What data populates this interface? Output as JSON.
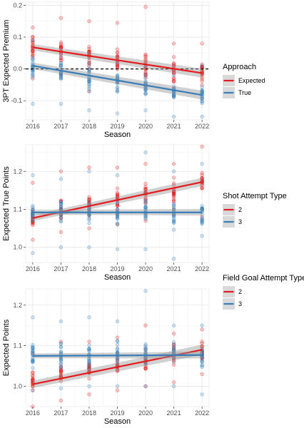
{
  "colors": {
    "red": "#e41a1c",
    "blue": "#377eb8"
  },
  "chart_data": [
    {
      "type": "scatter",
      "xlabel": "Season",
      "ylabel": "3PT Expected Premium",
      "x": [
        2016,
        2017,
        2018,
        2019,
        2020,
        2021,
        2022
      ],
      "xlim": [
        2015.75,
        2022.25
      ],
      "ylim": [
        -0.16,
        0.21
      ],
      "yticks": [
        -0.1,
        0.0,
        0.1,
        0.2
      ],
      "ytick_labels": [
        "-0.1",
        "0.0",
        "0.1",
        "0.2"
      ],
      "reference_line": {
        "y": 0,
        "style": "dashed"
      },
      "grid": true,
      "legend": {
        "title": "Approach",
        "position": "right"
      },
      "series": [
        {
          "name": "Expected",
          "color": "#e41a1c",
          "trend": [
            0.068,
            -0.013
          ],
          "band": 0.01,
          "center": [
            0.07,
            0.06,
            0.04,
            0.03,
            0.015,
            -0.002,
            -0.005
          ],
          "spread": [
            0.05,
            0.048,
            0.055,
            0.05,
            0.06,
            0.05,
            0.055
          ],
          "top": [
            0.13,
            0.16,
            0.15,
            0.145,
            0.195,
            0.08,
            0.08
          ],
          "bottom": [
            -0.03,
            -0.02,
            -0.07,
            -0.04,
            -0.05,
            -0.06,
            -0.05
          ]
        },
        {
          "name": "True",
          "color": "#377eb8",
          "trend": [
            0.01,
            -0.082
          ],
          "band": 0.01,
          "center": [
            0.0,
            -0.01,
            -0.03,
            -0.045,
            -0.055,
            -0.075,
            -0.085
          ],
          "spread": [
            0.05,
            0.048,
            0.05,
            0.045,
            0.05,
            0.04,
            0.04
          ],
          "top": [
            0.09,
            0.04,
            0.02,
            0.02,
            0.01,
            -0.02,
            0.01
          ],
          "bottom": [
            -0.11,
            -0.11,
            -0.13,
            -0.14,
            -0.13,
            -0.15,
            -0.15
          ]
        }
      ]
    },
    {
      "type": "scatter",
      "xlabel": "Season",
      "ylabel": "Expected True Points",
      "x": [
        2016,
        2017,
        2018,
        2019,
        2020,
        2021,
        2022
      ],
      "xlim": [
        2015.75,
        2022.25
      ],
      "ylim": [
        0.96,
        1.27
      ],
      "yticks": [
        1.0,
        1.1,
        1.2
      ],
      "ytick_labels": [
        "1.0",
        "1.1",
        "1.2"
      ],
      "grid": true,
      "legend": {
        "title": "Shot Attempt Type",
        "position": "right"
      },
      "series": [
        {
          "name": "2",
          "color": "#e41a1c",
          "trend": [
            1.077,
            1.172
          ],
          "band": 0.008,
          "center": [
            1.08,
            1.1,
            1.11,
            1.13,
            1.14,
            1.15,
            1.175
          ],
          "spread": [
            0.035,
            0.035,
            0.035,
            0.035,
            0.04,
            0.04,
            0.04
          ],
          "top": [
            1.17,
            1.2,
            1.21,
            1.21,
            1.22,
            1.22,
            1.265
          ],
          "bottom": [
            1.02,
            1.04,
            1.05,
            1.06,
            1.07,
            1.1,
            1.08
          ]
        },
        {
          "name": "3",
          "color": "#377eb8",
          "trend": [
            1.092,
            1.092
          ],
          "band": 0.006,
          "center": [
            1.09,
            1.09,
            1.09,
            1.09,
            1.095,
            1.085,
            1.085
          ],
          "spread": [
            0.045,
            0.045,
            0.045,
            0.045,
            0.05,
            0.045,
            0.04
          ],
          "top": [
            1.19,
            1.18,
            1.2,
            1.19,
            1.25,
            1.2,
            1.22
          ],
          "bottom": [
            0.985,
            1.0,
            1.0,
            0.995,
            0.995,
            0.97,
            1.03
          ]
        }
      ]
    },
    {
      "type": "scatter",
      "xlabel": "Season",
      "ylabel": "Expected Points",
      "x": [
        2016,
        2017,
        2018,
        2019,
        2020,
        2021,
        2022
      ],
      "xlim": [
        2015.75,
        2022.25
      ],
      "ylim": [
        0.95,
        1.24
      ],
      "yticks": [
        1.0,
        1.1,
        1.2
      ],
      "ytick_labels": [
        "1.0",
        "1.1",
        "1.2"
      ],
      "grid": true,
      "legend": {
        "title": "Field Goal Attempt Type",
        "position": "right"
      },
      "series": [
        {
          "name": "2",
          "color": "#e41a1c",
          "trend": [
            1.005,
            1.09
          ],
          "band": 0.009,
          "center": [
            1.01,
            1.03,
            1.04,
            1.05,
            1.06,
            1.075,
            1.085
          ],
          "spread": [
            0.035,
            0.035,
            0.035,
            0.035,
            0.04,
            0.04,
            0.035
          ],
          "top": [
            1.08,
            1.11,
            1.11,
            1.12,
            1.15,
            1.13,
            1.14
          ],
          "bottom": [
            0.95,
            0.965,
            0.98,
            0.99,
            1.0,
            1.01,
            1.03
          ]
        },
        {
          "name": "3",
          "color": "#377eb8",
          "trend": [
            1.075,
            1.077
          ],
          "band": 0.006,
          "center": [
            1.075,
            1.075,
            1.075,
            1.08,
            1.08,
            1.075,
            1.07
          ],
          "spread": [
            0.045,
            0.045,
            0.045,
            0.04,
            0.045,
            0.04,
            0.04
          ],
          "top": [
            1.17,
            1.16,
            1.17,
            1.16,
            1.235,
            1.15,
            1.15
          ],
          "bottom": [
            0.99,
            0.995,
            1.0,
            1.0,
            1.0,
            1.0,
            0.98
          ]
        }
      ]
    }
  ]
}
